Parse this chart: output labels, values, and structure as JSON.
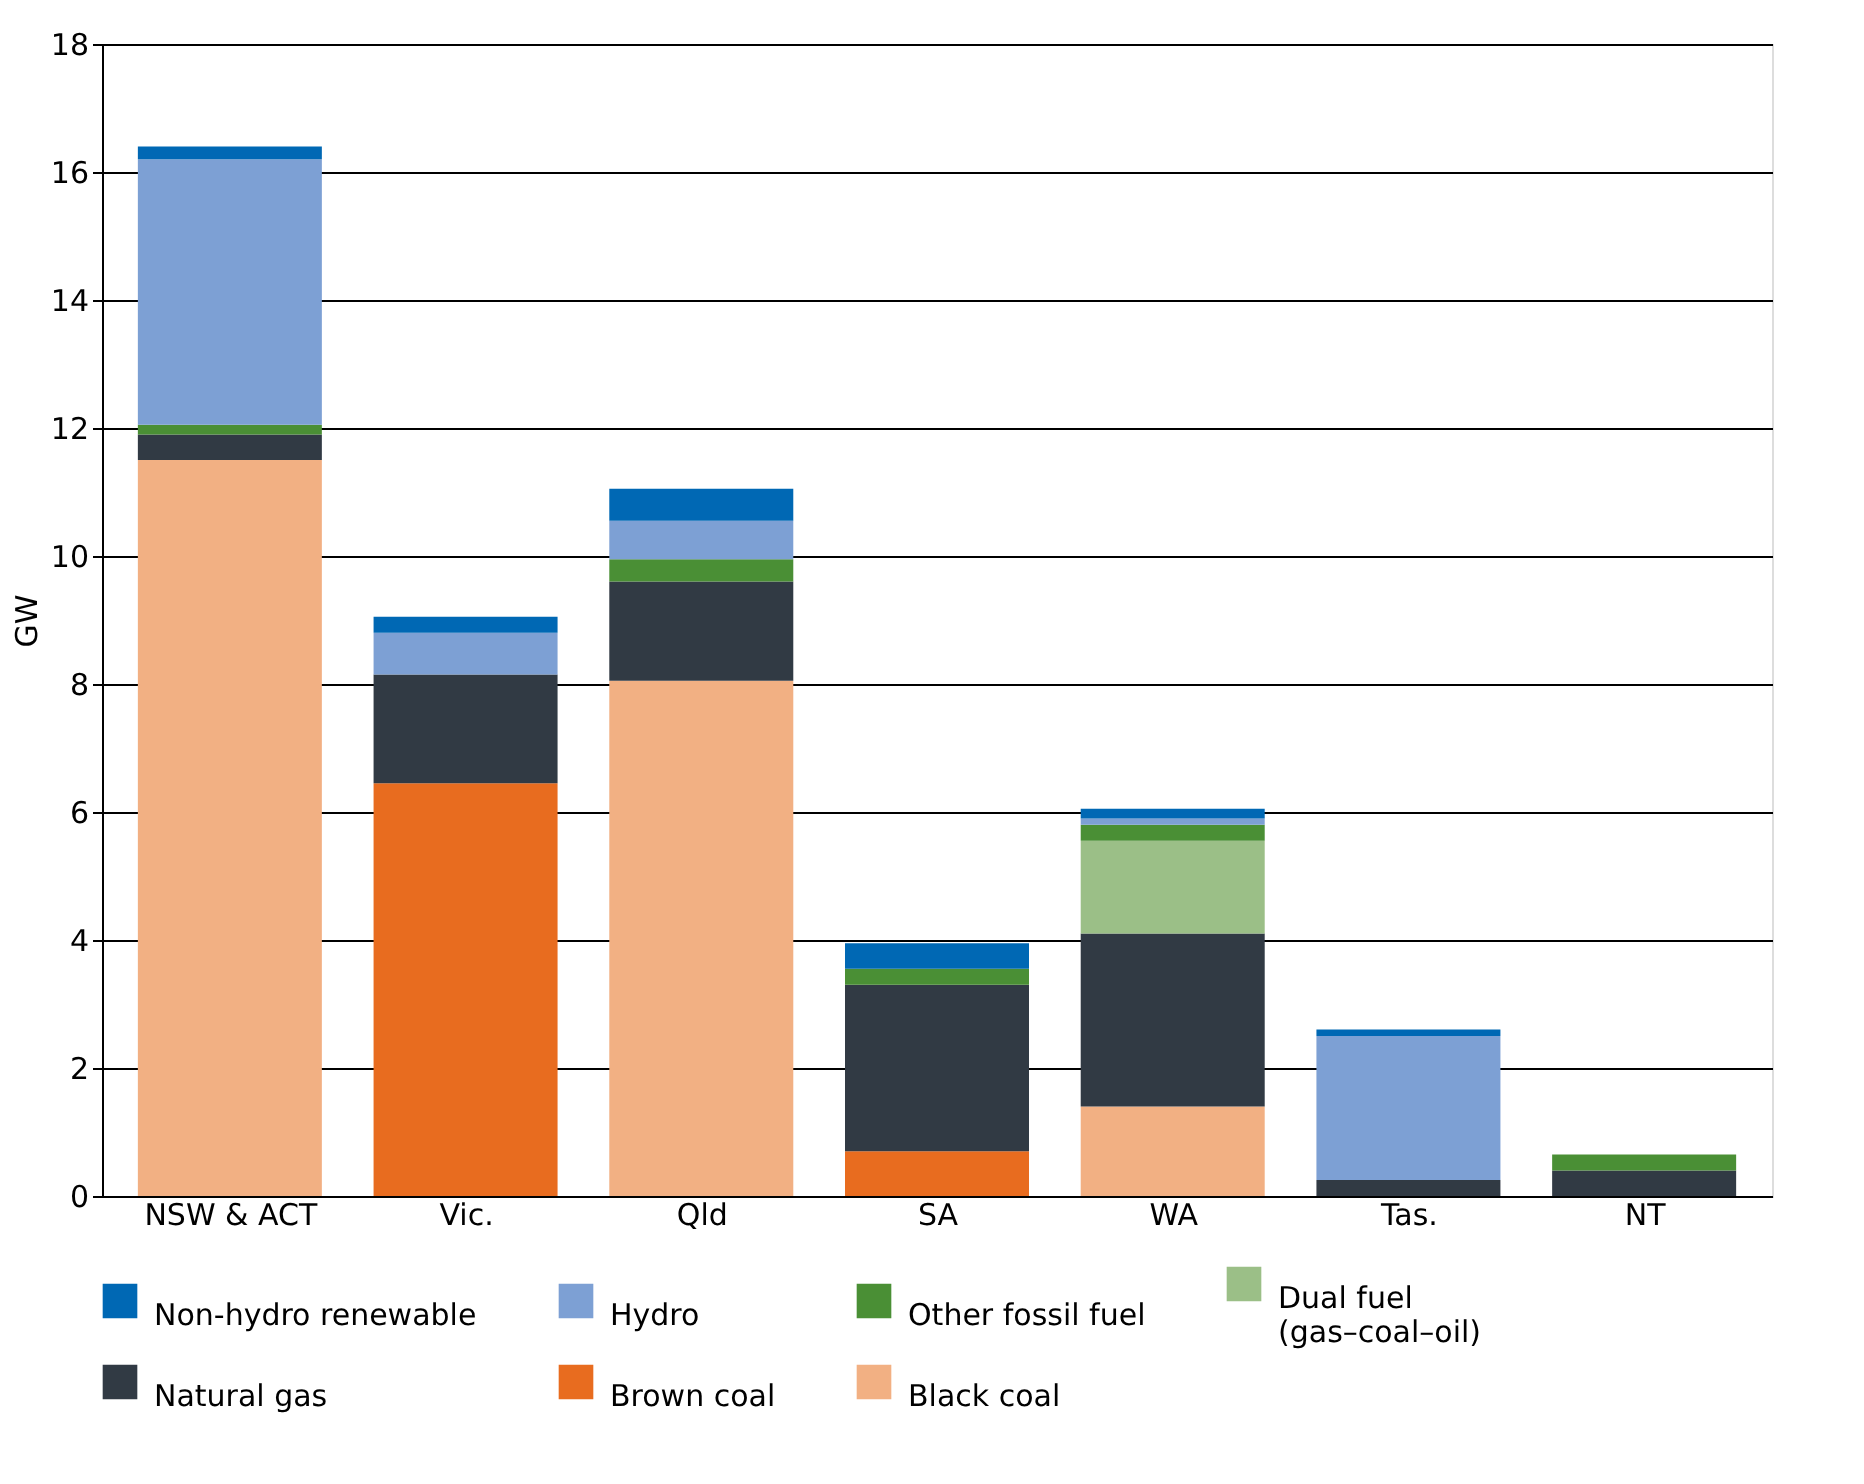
{
  "chart_data": {
    "type": "bar",
    "stacked": true,
    "ylabel": "GW",
    "categories": [
      "NSW & ACT",
      "Vic.",
      "Qld",
      "SA",
      "WA",
      "Tas.",
      "NT"
    ],
    "series": [
      {
        "name": "Black coal",
        "color": "#f2b083",
        "values": [
          11.5,
          0,
          8.05,
          0,
          1.4,
          0,
          0
        ]
      },
      {
        "name": "Brown coal",
        "color": "#e86c1f",
        "values": [
          0,
          6.45,
          0,
          0.7,
          0,
          0,
          0
        ]
      },
      {
        "name": "Natural gas",
        "color": "#313a44",
        "values": [
          0.4,
          1.7,
          1.55,
          2.6,
          2.7,
          0.25,
          0.4
        ]
      },
      {
        "name": "Dual fuel\n(gas–coal–oil)",
        "color": "#9bbf87",
        "values": [
          0,
          0,
          0,
          0,
          1.45,
          0,
          0
        ]
      },
      {
        "name": "Other fossil fuel",
        "color": "#4a8f35",
        "values": [
          0.15,
          0,
          0.35,
          0.25,
          0.25,
          0,
          0.25
        ]
      },
      {
        "name": "Hydro",
        "color": "#7da0d4",
        "values": [
          4.15,
          0.65,
          0.6,
          0,
          0.1,
          2.25,
          0
        ]
      },
      {
        "name": "Non-hydro renewable",
        "color": "#0068b4",
        "values": [
          0.2,
          0.25,
          0.5,
          0.4,
          0.15,
          0.1,
          0
        ]
      }
    ],
    "ylim": [
      0,
      18
    ],
    "yticks": [
      0,
      2,
      4,
      6,
      8,
      10,
      12,
      14,
      16,
      18
    ],
    "grid": "y",
    "legend": "bottom"
  }
}
